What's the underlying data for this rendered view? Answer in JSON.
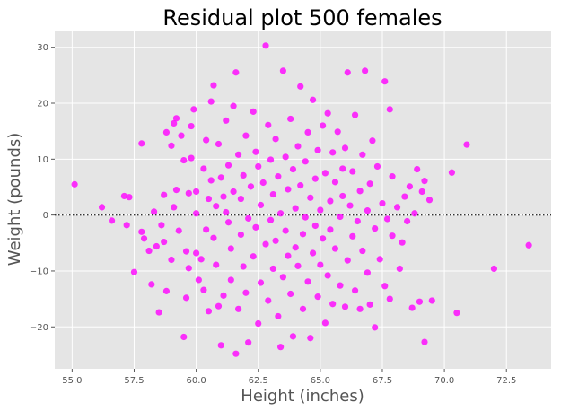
{
  "chart_data": {
    "type": "scatter",
    "title": "Residual plot 500 females",
    "xlabel": "Height (inches)",
    "ylabel": "Weight (pounds)",
    "xlim": [
      54.3,
      74.3
    ],
    "ylim": [
      -27.5,
      33.0
    ],
    "xticks": [
      55.0,
      57.5,
      60.0,
      62.5,
      65.0,
      67.5,
      70.0,
      72.5
    ],
    "xtick_labels": [
      "55.0",
      "57.5",
      "60.0",
      "62.5",
      "65.0",
      "67.5",
      "70.0",
      "72.5"
    ],
    "yticks": [
      -20,
      -10,
      0,
      10,
      20,
      30
    ],
    "ytick_labels": [
      "−20",
      "−10",
      "0",
      "10",
      "20",
      "30"
    ],
    "reference_line": {
      "y": 0,
      "style": "dotted"
    },
    "grid": true,
    "colors": {
      "point": "#ff00ff",
      "background": "#e5e5e5",
      "grid": "#ffffff",
      "reference": "#333333"
    },
    "points": [
      [
        55.1,
        5.5
      ],
      [
        56.2,
        1.4
      ],
      [
        56.6,
        -1.0
      ],
      [
        57.1,
        3.4
      ],
      [
        57.3,
        3.2
      ],
      [
        57.2,
        -1.8
      ],
      [
        57.5,
        -10.2
      ],
      [
        57.8,
        -3.0
      ],
      [
        57.9,
        -4.2
      ],
      [
        57.8,
        12.8
      ],
      [
        58.1,
        -6.4
      ],
      [
        58.2,
        -12.4
      ],
      [
        58.3,
        0.6
      ],
      [
        58.4,
        -5.6
      ],
      [
        58.5,
        -17.4
      ],
      [
        58.6,
        -1.8
      ],
      [
        58.7,
        -4.8
      ],
      [
        58.7,
        3.6
      ],
      [
        58.8,
        14.8
      ],
      [
        58.8,
        -13.6
      ],
      [
        59.0,
        12.4
      ],
      [
        59.0,
        -8.0
      ],
      [
        59.1,
        16.4
      ],
      [
        59.1,
        1.4
      ],
      [
        59.2,
        4.5
      ],
      [
        59.2,
        17.3
      ],
      [
        59.3,
        -2.8
      ],
      [
        59.4,
        14.2
      ],
      [
        59.5,
        9.8
      ],
      [
        59.5,
        -21.8
      ],
      [
        59.6,
        -6.5
      ],
      [
        59.6,
        -14.8
      ],
      [
        59.7,
        3.9
      ],
      [
        59.7,
        -9.5
      ],
      [
        59.8,
        15.9
      ],
      [
        59.8,
        10.2
      ],
      [
        59.9,
        18.9
      ],
      [
        60.0,
        4.2
      ],
      [
        60.0,
        0.3
      ],
      [
        60.0,
        -6.8
      ],
      [
        60.1,
        -11.6
      ],
      [
        60.2,
        -7.9
      ],
      [
        60.3,
        -13.4
      ],
      [
        60.3,
        8.3
      ],
      [
        60.4,
        13.4
      ],
      [
        60.4,
        -2.6
      ],
      [
        60.5,
        -17.2
      ],
      [
        60.5,
        2.9
      ],
      [
        60.6,
        20.3
      ],
      [
        60.6,
        6.2
      ],
      [
        60.7,
        -4.1
      ],
      [
        60.7,
        23.2
      ],
      [
        60.8,
        1.6
      ],
      [
        60.8,
        -8.9
      ],
      [
        60.9,
        -16.3
      ],
      [
        60.9,
        12.7
      ],
      [
        61.0,
        6.7
      ],
      [
        61.0,
        -23.3
      ],
      [
        61.1,
        3.3
      ],
      [
        61.1,
        -14.4
      ],
      [
        61.2,
        16.9
      ],
      [
        61.2,
        0.5
      ],
      [
        61.3,
        -1.3
      ],
      [
        61.3,
        8.9
      ],
      [
        61.4,
        -11.6
      ],
      [
        61.4,
        -6.0
      ],
      [
        61.5,
        19.5
      ],
      [
        61.5,
        4.2
      ],
      [
        61.6,
        -24.8
      ],
      [
        61.6,
        25.5
      ],
      [
        61.7,
        10.8
      ],
      [
        61.7,
        -16.8
      ],
      [
        61.8,
        -3.5
      ],
      [
        61.8,
        2.9
      ],
      [
        61.9,
        -9.2
      ],
      [
        61.9,
        7.1
      ],
      [
        62.0,
        14.2
      ],
      [
        62.0,
        -13.9
      ],
      [
        62.1,
        -0.6
      ],
      [
        62.1,
        -22.8
      ],
      [
        62.2,
        5.1
      ],
      [
        62.3,
        18.5
      ],
      [
        62.3,
        -7.4
      ],
      [
        62.4,
        11.3
      ],
      [
        62.4,
        -2.2
      ],
      [
        62.5,
        -19.4
      ],
      [
        62.5,
        8.7
      ],
      [
        62.6,
        1.8
      ],
      [
        62.6,
        -12.1
      ],
      [
        62.7,
        5.8
      ],
      [
        62.8,
        30.3
      ],
      [
        62.8,
        -5.2
      ],
      [
        62.9,
        16.1
      ],
      [
        62.9,
        -15.3
      ],
      [
        63.0,
        -0.9
      ],
      [
        63.0,
        9.9
      ],
      [
        63.1,
        3.7
      ],
      [
        63.1,
        -9.6
      ],
      [
        63.2,
        13.6
      ],
      [
        63.2,
        -4.6
      ],
      [
        63.3,
        -18.1
      ],
      [
        63.3,
        6.9
      ],
      [
        63.4,
        0.3
      ],
      [
        63.4,
        -23.6
      ],
      [
        63.5,
        25.8
      ],
      [
        63.5,
        -11.1
      ],
      [
        63.6,
        10.4
      ],
      [
        63.6,
        -2.8
      ],
      [
        63.7,
        -7.3
      ],
      [
        63.7,
        4.6
      ],
      [
        63.8,
        17.2
      ],
      [
        63.8,
        -14.1
      ],
      [
        63.9,
        8.2
      ],
      [
        63.9,
        -21.7
      ],
      [
        64.0,
        1.2
      ],
      [
        64.0,
        -5.8
      ],
      [
        64.1,
        12.3
      ],
      [
        64.1,
        -9.1
      ],
      [
        64.2,
        23.0
      ],
      [
        64.2,
        5.3
      ],
      [
        64.3,
        -3.4
      ],
      [
        64.3,
        -16.8
      ],
      [
        64.4,
        9.6
      ],
      [
        64.4,
        -0.4
      ],
      [
        64.5,
        14.8
      ],
      [
        64.5,
        -11.9
      ],
      [
        64.6,
        3.1
      ],
      [
        64.6,
        -22.0
      ],
      [
        64.7,
        20.6
      ],
      [
        64.7,
        -6.8
      ],
      [
        64.8,
        6.5
      ],
      [
        64.8,
        -1.9
      ],
      [
        64.9,
        -14.6
      ],
      [
        64.9,
        11.6
      ],
      [
        65.0,
        -8.9
      ],
      [
        65.0,
        0.9
      ],
      [
        65.1,
        16.0
      ],
      [
        65.1,
        -4.2
      ],
      [
        65.2,
        7.5
      ],
      [
        65.2,
        -19.3
      ],
      [
        65.3,
        18.2
      ],
      [
        65.3,
        -10.8
      ],
      [
        65.4,
        2.5
      ],
      [
        65.4,
        -2.6
      ],
      [
        65.5,
        11.2
      ],
      [
        65.5,
        -15.9
      ],
      [
        65.6,
        5.9
      ],
      [
        65.6,
        -6.0
      ],
      [
        65.7,
        14.9
      ],
      [
        65.8,
        -0.3
      ],
      [
        65.8,
        -12.6
      ],
      [
        65.9,
        8.3
      ],
      [
        65.9,
        3.4
      ],
      [
        66.0,
        -16.4
      ],
      [
        66.0,
        12.0
      ],
      [
        66.1,
        -8.1
      ],
      [
        66.1,
        25.5
      ],
      [
        66.2,
        1.7
      ],
      [
        66.3,
        -3.8
      ],
      [
        66.3,
        7.8
      ],
      [
        66.4,
        -13.5
      ],
      [
        66.4,
        17.9
      ],
      [
        66.5,
        -1.1
      ],
      [
        66.6,
        4.3
      ],
      [
        66.6,
        -16.8
      ],
      [
        66.7,
        10.8
      ],
      [
        66.7,
        -6.4
      ],
      [
        66.8,
        25.8
      ],
      [
        66.9,
        0.8
      ],
      [
        66.9,
        -10.3
      ],
      [
        67.0,
        5.6
      ],
      [
        67.0,
        -16.0
      ],
      [
        67.1,
        13.3
      ],
      [
        67.2,
        -2.4
      ],
      [
        67.2,
        -20.1
      ],
      [
        67.3,
        8.7
      ],
      [
        67.4,
        -7.9
      ],
      [
        67.5,
        2.1
      ],
      [
        67.6,
        23.9
      ],
      [
        67.6,
        -12.7
      ],
      [
        67.7,
        -0.7
      ],
      [
        67.8,
        18.9
      ],
      [
        67.8,
        -15.0
      ],
      [
        67.9,
        6.9
      ],
      [
        67.9,
        -3.7
      ],
      [
        68.1,
        1.4
      ],
      [
        68.2,
        -9.6
      ],
      [
        68.3,
        -4.9
      ],
      [
        68.4,
        3.3
      ],
      [
        68.5,
        -1.1
      ],
      [
        68.6,
        5.1
      ],
      [
        68.7,
        -16.6
      ],
      [
        68.8,
        0.3
      ],
      [
        68.9,
        8.2
      ],
      [
        69.0,
        -15.5
      ],
      [
        69.1,
        4.2
      ],
      [
        69.2,
        6.1
      ],
      [
        69.2,
        -22.7
      ],
      [
        69.4,
        2.7
      ],
      [
        69.5,
        -15.3
      ],
      [
        70.3,
        7.6
      ],
      [
        70.5,
        -17.5
      ],
      [
        70.9,
        12.6
      ],
      [
        72.0,
        -9.6
      ],
      [
        73.4,
        -5.4
      ]
    ]
  }
}
